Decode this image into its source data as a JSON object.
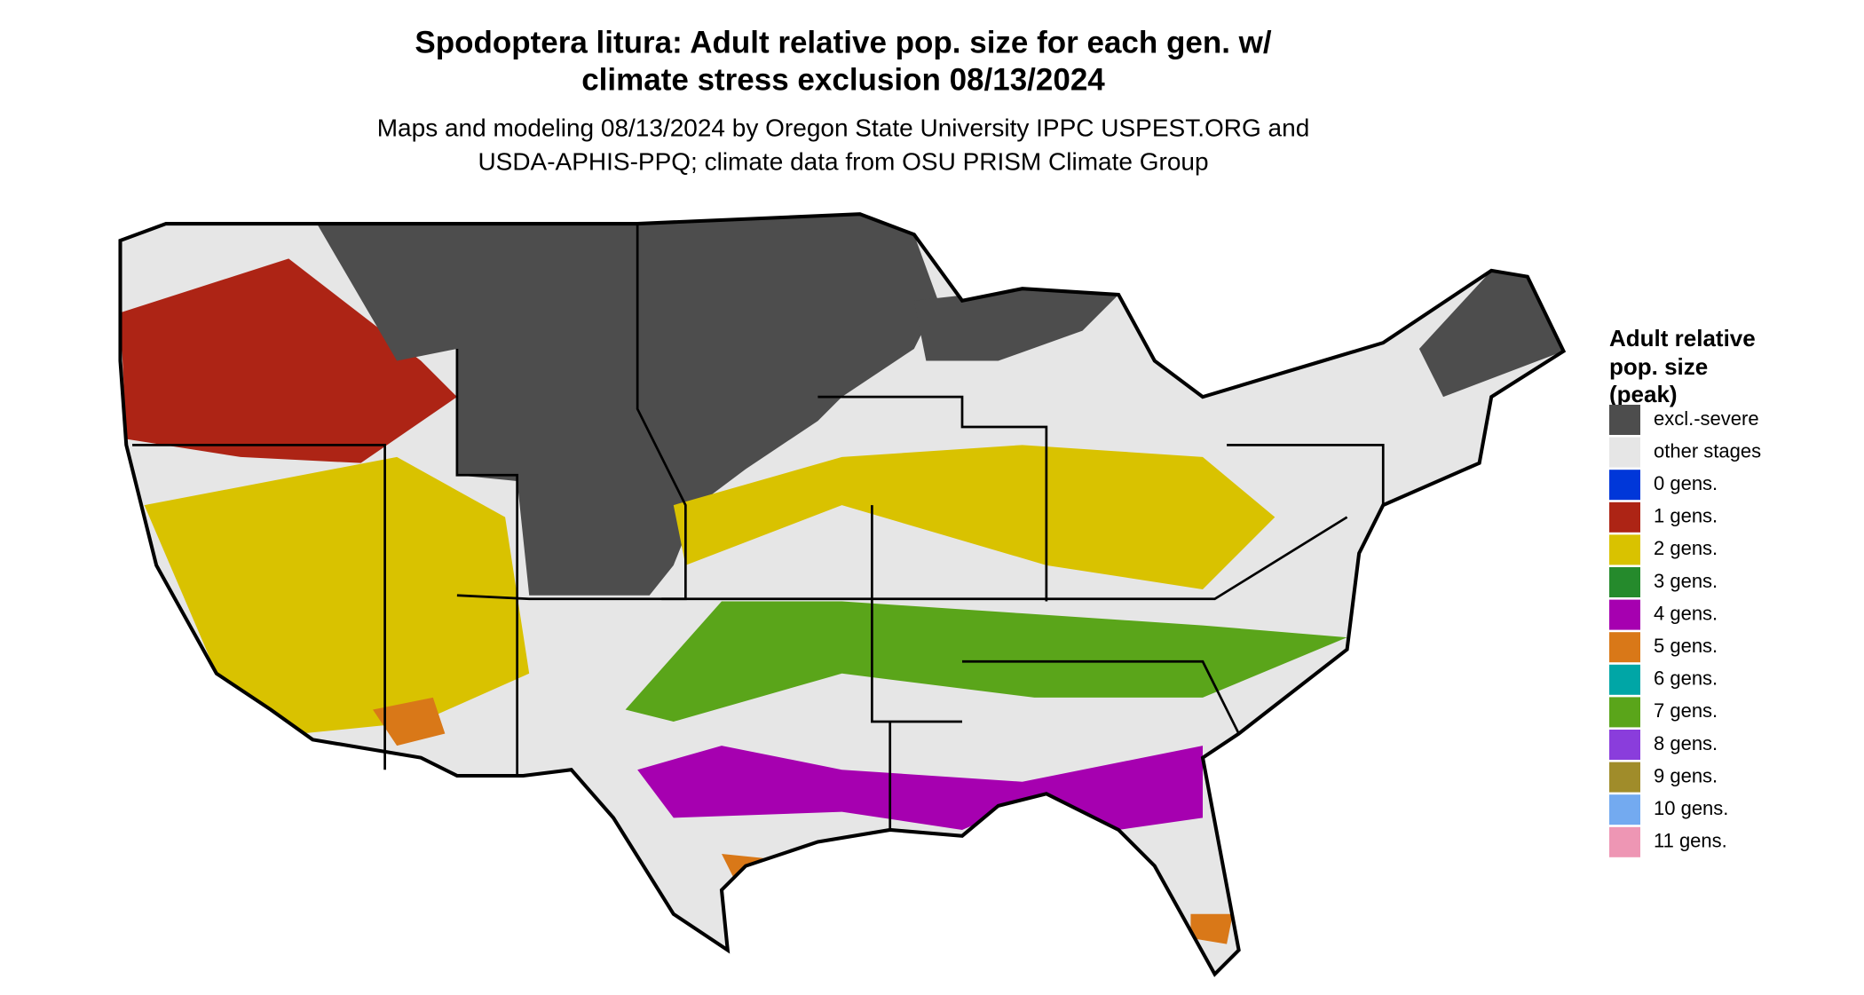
{
  "title": [
    "Spodoptera litura: Adult relative pop. size for each gen. w/",
    "climate stress exclusion 08/13/2024"
  ],
  "subtitle": [
    "Maps and modeling 08/13/2024 by Oregon State University IPPC USPEST.ORG and",
    "USDA-APHIS-PPQ; climate data from OSU PRISM Climate Group"
  ],
  "legend": {
    "title": [
      "Adult relative",
      "pop. size",
      "(peak)"
    ],
    "items": [
      {
        "label": "excl.-severe",
        "color": "#4d4d4d"
      },
      {
        "label": "other stages",
        "color": "#e6e6e6"
      },
      {
        "label": "0 gens.",
        "color": "#0037d9"
      },
      {
        "label": "1 gens.",
        "color": "#ad2415"
      },
      {
        "label": "2 gens.",
        "color": "#d9c200"
      },
      {
        "label": "3 gens.",
        "color": "#258a2c"
      },
      {
        "label": "4 gens.",
        "color": "#a600b0"
      },
      {
        "label": "5 gens.",
        "color": "#d97818"
      },
      {
        "label": "6 gens.",
        "color": "#00a6a6"
      },
      {
        "label": "7 gens.",
        "color": "#5aa51a"
      },
      {
        "label": "8 gens.",
        "color": "#8a3ddc"
      },
      {
        "label": "9 gens.",
        "color": "#a08c2a"
      },
      {
        "label": "10 gens.",
        "color": "#73aaf0"
      },
      {
        "label": "11 gens.",
        "color": "#ee96b4"
      }
    ]
  }
}
